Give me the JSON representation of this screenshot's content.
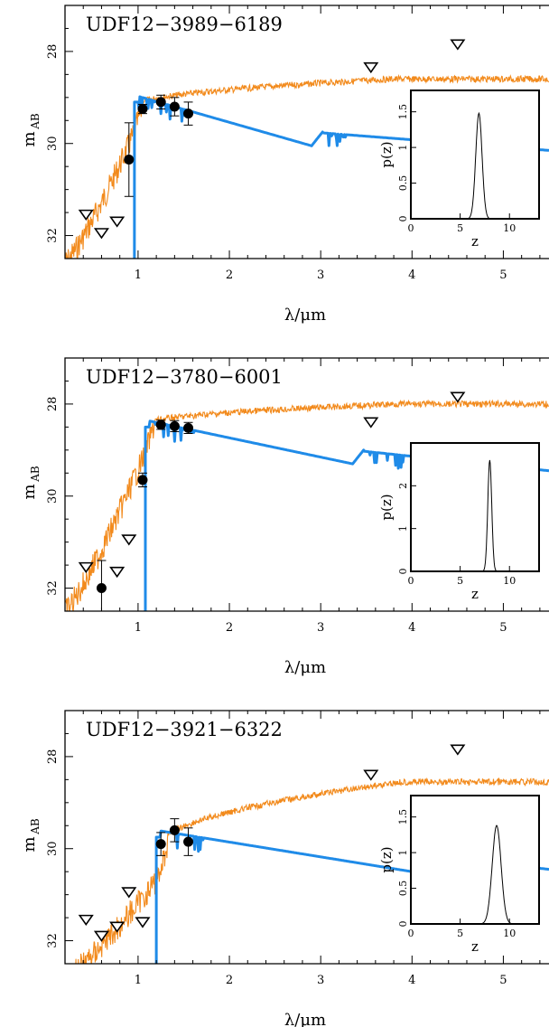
{
  "colors": {
    "orange_sed": "#f28a1c",
    "blue_sed": "#1f8be8",
    "points": "#000000",
    "frame": "#000000"
  },
  "chart_data": [
    {
      "type": "scatter",
      "title": "UDF12−3989−6189",
      "xlabel": "λ/μm",
      "ylabel": "m",
      "ylabel_sub": "AB",
      "xlim": [
        0.2,
        5.5
      ],
      "ylim": [
        32.5,
        27.0
      ],
      "xticks": [
        1,
        2,
        3,
        4,
        5
      ],
      "yticks": [
        28,
        30,
        32
      ],
      "detections": [
        {
          "x": 0.9,
          "y": 30.35,
          "err": 0.8
        },
        {
          "x": 1.05,
          "y": 29.25,
          "err": 0.1
        },
        {
          "x": 1.25,
          "y": 29.1,
          "err": 0.15
        },
        {
          "x": 1.4,
          "y": 29.2,
          "err": 0.2
        },
        {
          "x": 1.55,
          "y": 29.35,
          "err": 0.25
        }
      ],
      "upper_limits": [
        {
          "x": 0.43,
          "y": 31.55
        },
        {
          "x": 0.6,
          "y": 31.95
        },
        {
          "x": 0.77,
          "y": 31.7
        },
        {
          "x": 3.55,
          "y": 28.35
        },
        {
          "x": 4.5,
          "y": 27.85
        }
      ],
      "blue_model": {
        "break_x": 0.96,
        "plateau": 28.95,
        "jump_x": 2.9,
        "jump_from": 30.05,
        "jump_to": 29.75,
        "end": 30.15
      },
      "orange_model": {
        "start_y": 32.6,
        "break_x": 0.93,
        "plateau": 29.2,
        "end": 28.6
      },
      "inset": {
        "xlabel": "z",
        "ylabel": "p(z)",
        "xticks": [
          0,
          5,
          10
        ],
        "yticks": [
          0,
          0.5,
          1,
          1.5
        ],
        "ytick_labels": [
          "0",
          "0.5",
          "1",
          "1.5"
        ],
        "xlim": [
          0,
          13
        ],
        "ylim": [
          0,
          1.8
        ],
        "peak_z": 6.9,
        "peak_p": 1.48,
        "width": 0.32
      }
    },
    {
      "type": "scatter",
      "title": "UDF12−3780−6001",
      "xlabel": "λ/μm",
      "ylabel": "m",
      "ylabel_sub": "AB",
      "xlim": [
        0.2,
        5.5
      ],
      "ylim": [
        32.5,
        27.0
      ],
      "xticks": [
        1,
        2,
        3,
        4,
        5
      ],
      "yticks": [
        28,
        30,
        32
      ],
      "detections": [
        {
          "x": 0.6,
          "y": 32.0,
          "err": 0.6
        },
        {
          "x": 1.05,
          "y": 29.65,
          "err": 0.15
        },
        {
          "x": 1.25,
          "y": 28.45,
          "err": 0.1
        },
        {
          "x": 1.4,
          "y": 28.48,
          "err": 0.12
        },
        {
          "x": 1.55,
          "y": 28.52,
          "err": 0.12
        }
      ],
      "upper_limits": [
        {
          "x": 0.43,
          "y": 31.55
        },
        {
          "x": 0.77,
          "y": 31.65
        },
        {
          "x": 0.9,
          "y": 30.95
        },
        {
          "x": 3.55,
          "y": 28.4
        },
        {
          "x": 4.5,
          "y": 27.85
        }
      ],
      "blue_model": {
        "break_x": 1.08,
        "plateau": 28.35,
        "jump_x": 3.35,
        "jump_from": 29.3,
        "jump_to": 29.0,
        "end": 29.45
      },
      "orange_model": {
        "start_y": 32.5,
        "break_x": 1.06,
        "plateau": 28.45,
        "end": 28.0
      },
      "inset": {
        "xlabel": "z",
        "ylabel": "p(z)",
        "xticks": [
          0,
          5,
          10
        ],
        "yticks": [
          0,
          1,
          2
        ],
        "ytick_labels": [
          "0",
          "1",
          "2"
        ],
        "xlim": [
          0,
          13
        ],
        "ylim": [
          0,
          3.0
        ],
        "peak_z": 8.0,
        "peak_p": 2.6,
        "width": 0.2
      }
    },
    {
      "type": "scatter",
      "title": "UDF12−3921−6322",
      "xlabel": "λ/μm",
      "ylabel": "m",
      "ylabel_sub": "AB",
      "xlim": [
        0.2,
        5.5
      ],
      "ylim": [
        32.5,
        27.0
      ],
      "xticks": [
        1,
        2,
        3,
        4,
        5
      ],
      "yticks": [
        28,
        30,
        32
      ],
      "detections": [
        {
          "x": 1.25,
          "y": 29.9,
          "err": 0.25
        },
        {
          "x": 1.4,
          "y": 29.6,
          "err": 0.25
        },
        {
          "x": 1.55,
          "y": 29.85,
          "err": 0.3
        }
      ],
      "upper_limits": [
        {
          "x": 0.43,
          "y": 31.55
        },
        {
          "x": 0.6,
          "y": 31.9
        },
        {
          "x": 0.77,
          "y": 31.7
        },
        {
          "x": 0.9,
          "y": 30.95
        },
        {
          "x": 1.05,
          "y": 31.6
        },
        {
          "x": 3.55,
          "y": 28.4
        },
        {
          "x": 4.5,
          "y": 27.85
        }
      ],
      "blue_model": {
        "break_x": 1.2,
        "plateau": 29.6,
        "jump_x": 4.0,
        "jump_from": 30.5,
        "jump_to": 30.1,
        "end": 30.45
      },
      "orange_model": {
        "start_y": 32.8,
        "break_x": 1.2,
        "plateau": 30.0,
        "end": 28.55
      },
      "inset": {
        "xlabel": "z",
        "ylabel": "p(z)",
        "xticks": [
          0,
          5,
          10
        ],
        "yticks": [
          0,
          0.5,
          1,
          1.5
        ],
        "ytick_labels": [
          "0",
          "0.5",
          "1",
          "1.5"
        ],
        "xlim": [
          0,
          13
        ],
        "ylim": [
          0,
          1.8
        ],
        "peak_z": 8.7,
        "peak_p": 1.38,
        "width": 0.45
      }
    }
  ]
}
